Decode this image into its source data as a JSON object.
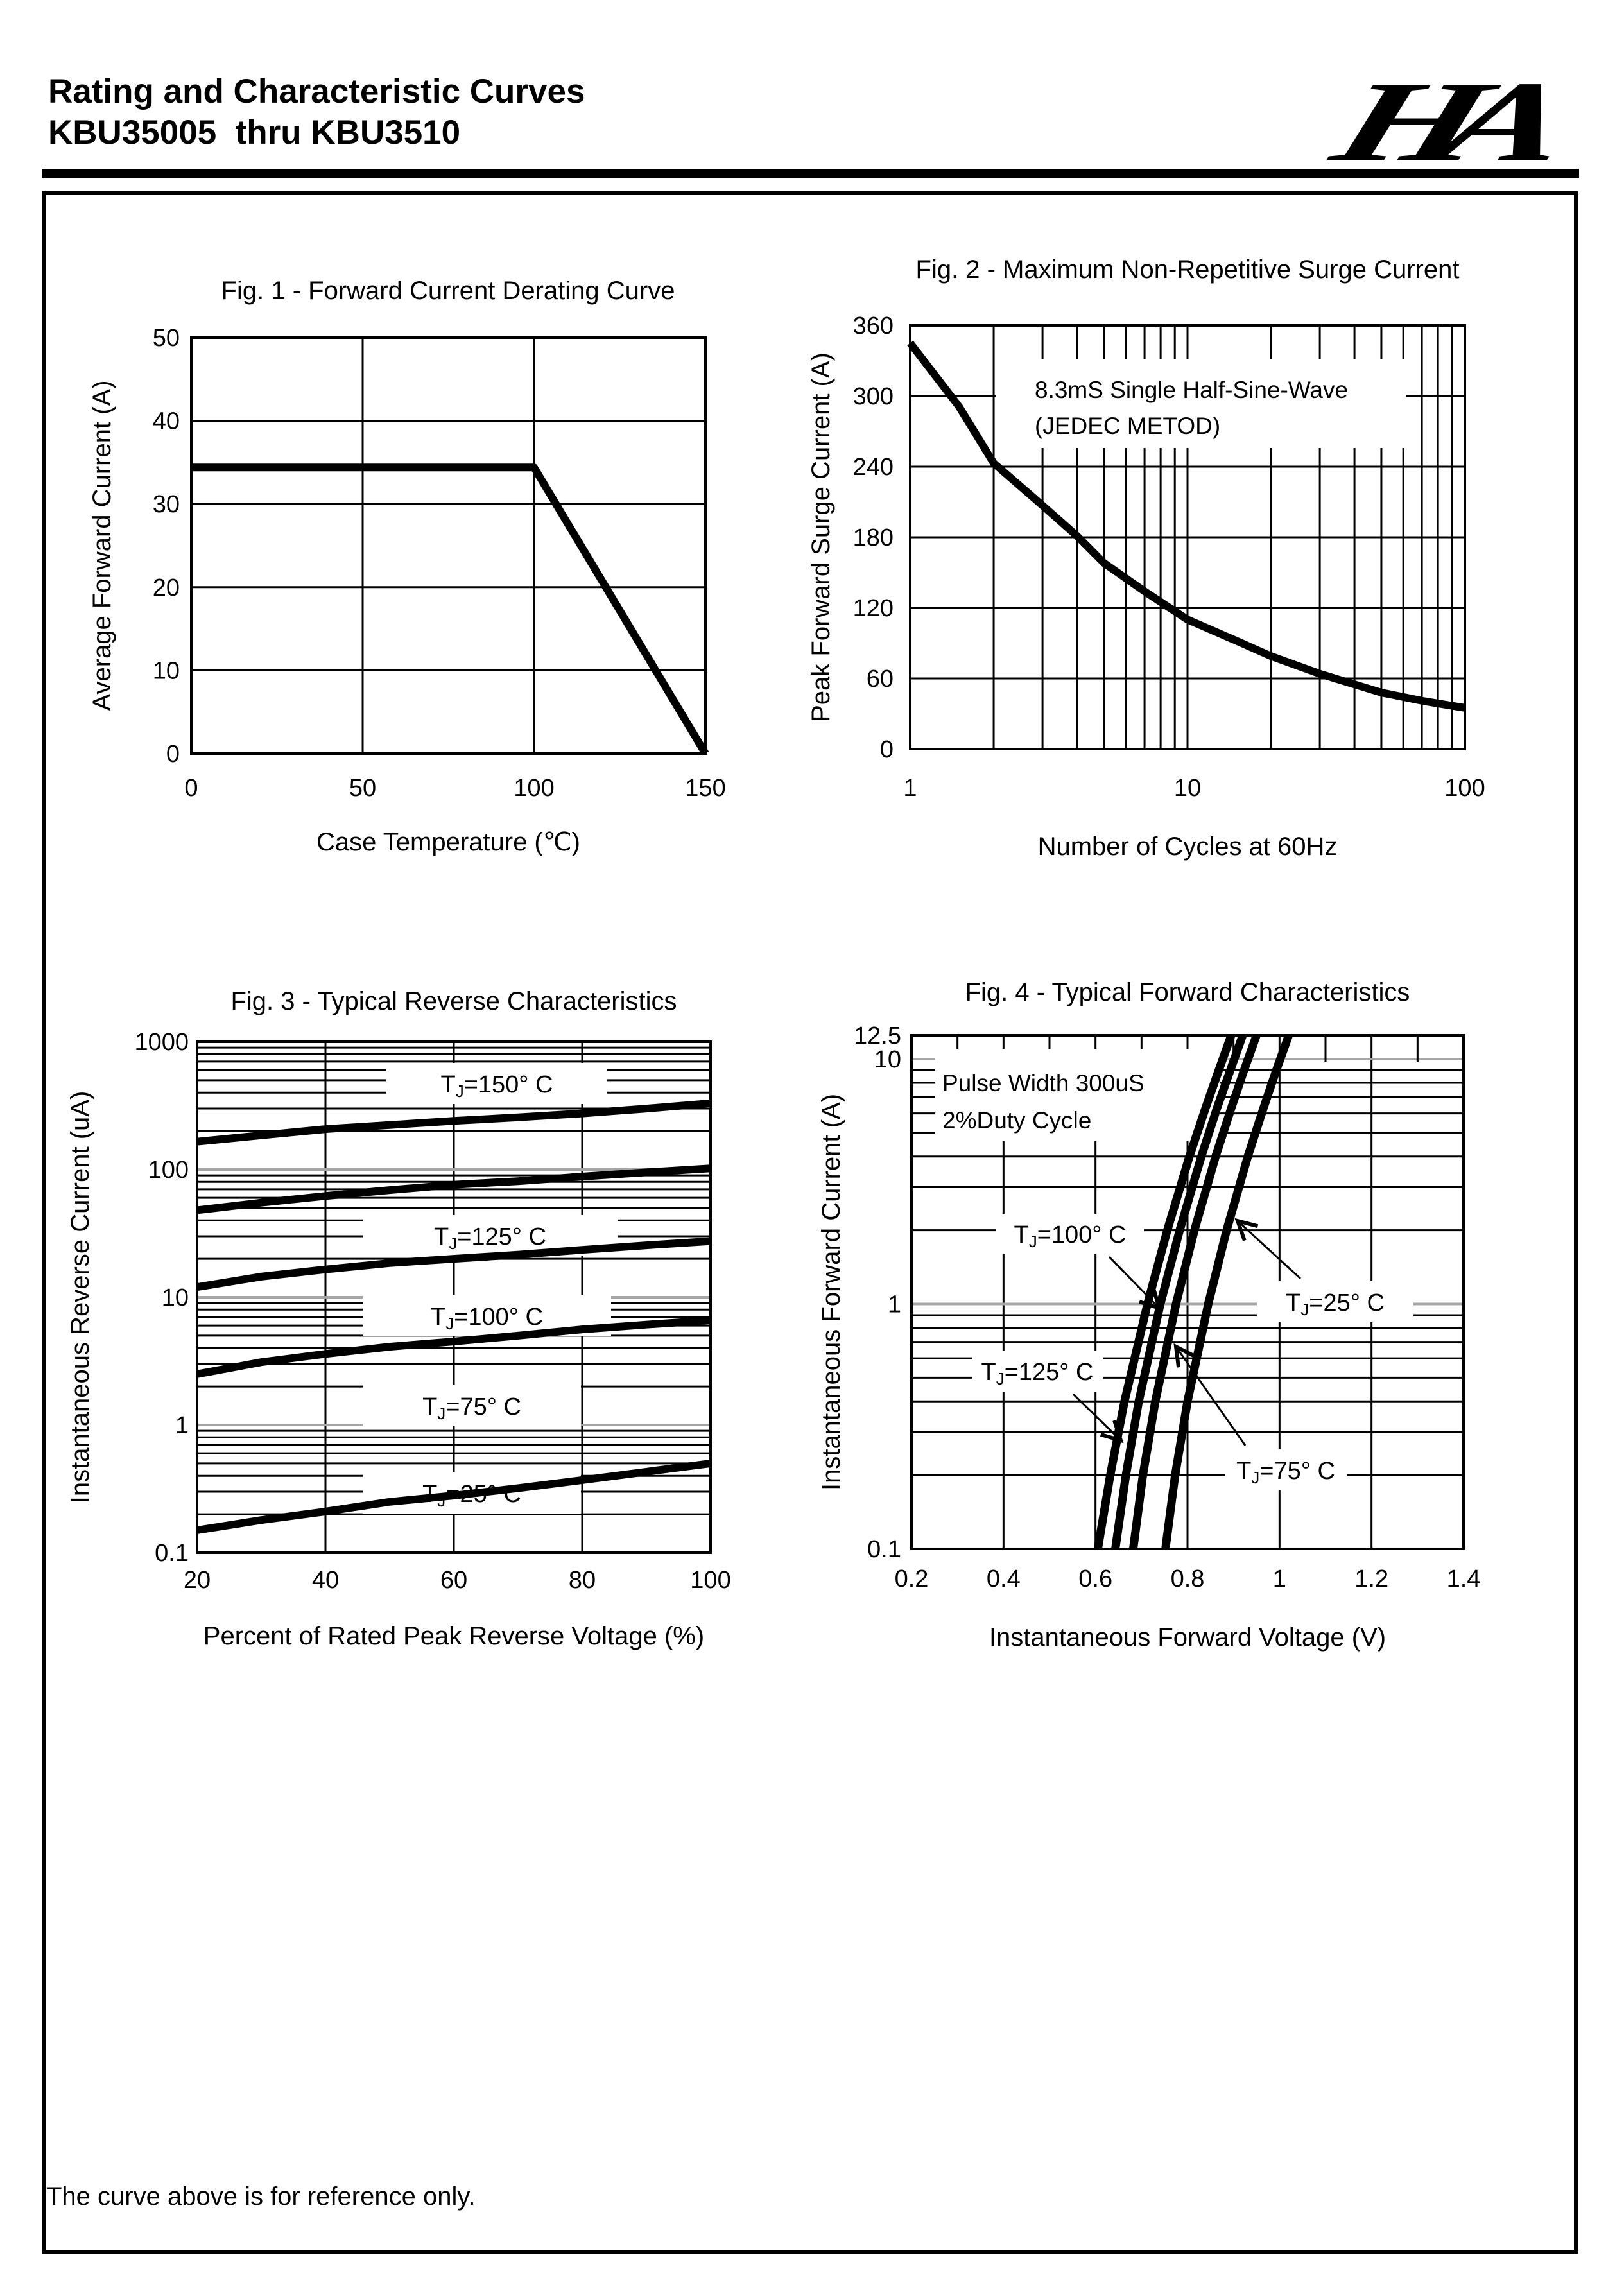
{
  "header": {
    "title_line1": "Rating and Characteristic Curves",
    "title_line2": "KBU35005  thru KBU3510",
    "logo_text": "HA"
  },
  "footer": {
    "note": "The curve above is for reference only."
  },
  "colors": {
    "ink": "#000000",
    "grid_major_gray": "#a6a6a6"
  },
  "chart_data": [
    {
      "id": "fig1",
      "type": "line",
      "title": "Fig. 1 - Forward Current Derating Curve",
      "xlabel": "Case Temperature (℃)",
      "ylabel": "Average Forward Current (A)",
      "x": {
        "scale": "linear",
        "min": 0,
        "max": 150,
        "gridlines": [
          50,
          100
        ],
        "ticks": [
          {
            "v": 0,
            "label": "0"
          },
          {
            "v": 50,
            "label": "50"
          },
          {
            "v": 100,
            "label": "100"
          },
          {
            "v": 150,
            "label": "150"
          }
        ]
      },
      "y": {
        "scale": "linear",
        "min": 0,
        "max": 50,
        "gridlines": [
          10,
          20,
          30,
          40
        ],
        "ticks": [
          {
            "v": 50,
            "label": "50"
          },
          {
            "v": 40,
            "label": "40"
          },
          {
            "v": 30,
            "label": "30"
          },
          {
            "v": 20,
            "label": "20"
          },
          {
            "v": 10,
            "label": "10"
          },
          {
            "v": 0,
            "label": "0"
          }
        ]
      },
      "series": [
        {
          "name": "derating-curve",
          "points": [
            [
              0,
              34.4
            ],
            [
              100,
              34.4
            ],
            [
              150,
              0
            ]
          ]
        }
      ]
    },
    {
      "id": "fig2",
      "type": "line",
      "title": "Fig. 2 - Maximum Non-Repetitive Surge Current",
      "xlabel": "Number of Cycles at 60Hz",
      "ylabel": "Peak Forward Surge Current (A)",
      "x": {
        "scale": "log",
        "min": 1,
        "max": 100,
        "ticks": [
          {
            "v": 1,
            "label": "1"
          },
          {
            "v": 10,
            "label": "10"
          },
          {
            "v": 100,
            "label": "100"
          }
        ]
      },
      "y": {
        "scale": "linear",
        "min": 0,
        "max": 360,
        "gridlines": [
          60,
          120,
          180,
          240,
          300
        ],
        "ticks": [
          {
            "v": 360,
            "label": "360"
          },
          {
            "v": 300,
            "label": "300"
          },
          {
            "v": 240,
            "label": "240"
          },
          {
            "v": 180,
            "label": "180"
          },
          {
            "v": 120,
            "label": "120"
          },
          {
            "v": 60,
            "label": "60"
          },
          {
            "v": 0,
            "label": "0"
          }
        ]
      },
      "annotation": {
        "lines": [
          "8.3mS Single Half-Sine-Wave",
          "(JEDEC METOD)"
        ]
      },
      "series": [
        {
          "name": "surge-current",
          "points": [
            [
              1,
              345
            ],
            [
              1.5,
              291
            ],
            [
              2,
              243
            ],
            [
              3,
              207
            ],
            [
              4,
              181
            ],
            [
              5,
              158
            ],
            [
              7,
              134
            ],
            [
              10,
              110
            ],
            [
              15,
              92
            ],
            [
              20,
              79
            ],
            [
              30,
              64
            ],
            [
              50,
              48
            ],
            [
              70,
              41
            ],
            [
              100,
              35
            ]
          ]
        }
      ]
    },
    {
      "id": "fig3",
      "type": "line",
      "title": "Fig. 3 - Typical Reverse Characteristics",
      "xlabel": "Percent of Rated Peak Reverse Voltage (%)",
      "ylabel": "Instantaneous Reverse Current (uA)",
      "x": {
        "scale": "linear",
        "min": 20,
        "max": 100,
        "gridlines": [
          40,
          60,
          80
        ],
        "ticks": [
          {
            "v": 20,
            "label": "20"
          },
          {
            "v": 40,
            "label": "40"
          },
          {
            "v": 60,
            "label": "60"
          },
          {
            "v": 80,
            "label": "80"
          },
          {
            "v": 100,
            "label": "100"
          }
        ]
      },
      "y": {
        "scale": "log",
        "min": 0.1,
        "max": 1000,
        "ticks": [
          {
            "v": 1000,
            "label": "1000"
          },
          {
            "v": 100,
            "label": "100"
          },
          {
            "v": 10,
            "label": "10"
          },
          {
            "v": 1,
            "label": "1"
          },
          {
            "v": 0.1,
            "label": "0.1"
          }
        ]
      },
      "series": [
        {
          "name": "tj-150",
          "points": [
            [
              20,
              165
            ],
            [
              30,
              185
            ],
            [
              40,
              207
            ],
            [
              50,
              223
            ],
            [
              60,
              240
            ],
            [
              70,
              256
            ],
            [
              80,
              275
            ],
            [
              90,
              300
            ],
            [
              100,
              330
            ]
          ]
        },
        {
          "name": "tj-125",
          "points": [
            [
              20,
              48
            ],
            [
              30,
              55
            ],
            [
              40,
              62
            ],
            [
              50,
              69
            ],
            [
              60,
              76
            ],
            [
              70,
              81
            ],
            [
              80,
              88
            ],
            [
              90,
              95
            ],
            [
              100,
              102
            ]
          ]
        },
        {
          "name": "tj-100",
          "points": [
            [
              20,
              12
            ],
            [
              30,
              14.5
            ],
            [
              40,
              16.5
            ],
            [
              50,
              18.5
            ],
            [
              60,
              20
            ],
            [
              70,
              21.5
            ],
            [
              80,
              23.5
            ],
            [
              90,
              25.5
            ],
            [
              100,
              27.5
            ]
          ]
        },
        {
          "name": "tj-75",
          "points": [
            [
              20,
              2.5
            ],
            [
              30,
              3.1
            ],
            [
              40,
              3.6
            ],
            [
              50,
              4.1
            ],
            [
              60,
              4.5
            ],
            [
              70,
              5.0
            ],
            [
              80,
              5.6
            ],
            [
              90,
              6.1
            ],
            [
              100,
              6.6
            ]
          ]
        },
        {
          "name": "tj-25",
          "points": [
            [
              20,
              0.15
            ],
            [
              30,
              0.18
            ],
            [
              40,
              0.21
            ],
            [
              50,
              0.25
            ],
            [
              60,
              0.28
            ],
            [
              70,
              0.32
            ],
            [
              80,
              0.37
            ],
            [
              90,
              0.43
            ],
            [
              100,
              0.5
            ]
          ]
        }
      ],
      "labels": [
        {
          "text": "TJ=150° C"
        },
        {
          "text": "TJ=125° C"
        },
        {
          "text": "TJ=100° C"
        },
        {
          "text": "TJ=75° C"
        },
        {
          "text": "TJ=25° C"
        }
      ]
    },
    {
      "id": "fig4",
      "type": "line",
      "title": "Fig. 4 - Typical Forward Characteristics",
      "xlabel": "Instantaneous Forward Voltage (V)",
      "ylabel": "Instantaneous Forward Current (A)",
      "x": {
        "scale": "linear",
        "min": 0.2,
        "max": 1.4,
        "gridlines": [
          0.4,
          0.6,
          0.8,
          1.0,
          1.2
        ],
        "minor_ticks": [
          0.3,
          0.5,
          0.7,
          0.9,
          1.1,
          1.3
        ],
        "ticks": [
          {
            "v": 0.2,
            "label": "0.2"
          },
          {
            "v": 0.4,
            "label": "0.4"
          },
          {
            "v": 0.6,
            "label": "0.6"
          },
          {
            "v": 0.8,
            "label": "0.8"
          },
          {
            "v": 1,
            "label": "1"
          },
          {
            "v": 1.2,
            "label": "1.2"
          },
          {
            "v": 1.4,
            "label": "1.4"
          }
        ]
      },
      "y": {
        "scale": "log",
        "min": 0.1,
        "max": 12.5,
        "ticks": [
          {
            "v": 12.5,
            "label": "12.5"
          },
          {
            "v": 10,
            "label": "10"
          },
          {
            "v": 1,
            "label": "1"
          },
          {
            "v": 0.1,
            "label": "0.1"
          }
        ]
      },
      "annotation": {
        "lines": [
          "Pulse Width 300uS",
          "2%Duty Cycle"
        ]
      },
      "series": [
        {
          "name": "tj-125",
          "points": [
            [
              0.605,
              0.1
            ],
            [
              0.632,
              0.2
            ],
            [
              0.663,
              0.4
            ],
            [
              0.713,
              1
            ],
            [
              0.756,
              2
            ],
            [
              0.804,
              4
            ],
            [
              0.839,
              6.3
            ],
            [
              0.867,
              8.9
            ],
            [
              0.895,
              12.5
            ]
          ]
        },
        {
          "name": "tj-100",
          "points": [
            [
              0.643,
              0.1
            ],
            [
              0.666,
              0.2
            ],
            [
              0.694,
              0.4
            ],
            [
              0.741,
              1
            ],
            [
              0.783,
              2
            ],
            [
              0.83,
              4
            ],
            [
              0.864,
              6.3
            ],
            [
              0.892,
              8.9
            ],
            [
              0.92,
              12.5
            ]
          ]
        },
        {
          "name": "tj-75",
          "points": [
            [
              0.682,
              0.1
            ],
            [
              0.703,
              0.2
            ],
            [
              0.73,
              0.4
            ],
            [
              0.775,
              1
            ],
            [
              0.815,
              2
            ],
            [
              0.861,
              4
            ],
            [
              0.895,
              6.3
            ],
            [
              0.922,
              8.9
            ],
            [
              0.95,
              12.5
            ]
          ]
        },
        {
          "name": "tj-25",
          "points": [
            [
              0.752,
              0.1
            ],
            [
              0.773,
              0.2
            ],
            [
              0.8,
              0.4
            ],
            [
              0.845,
              1
            ],
            [
              0.885,
              2
            ],
            [
              0.931,
              4
            ],
            [
              0.965,
              6.3
            ],
            [
              0.992,
              8.9
            ],
            [
              1.02,
              12.5
            ]
          ]
        }
      ],
      "labels": [
        {
          "text": "TJ=100° C"
        },
        {
          "text": "TJ=25° C"
        },
        {
          "text": "TJ=125° C"
        },
        {
          "text": "TJ=75° C"
        }
      ]
    }
  ]
}
